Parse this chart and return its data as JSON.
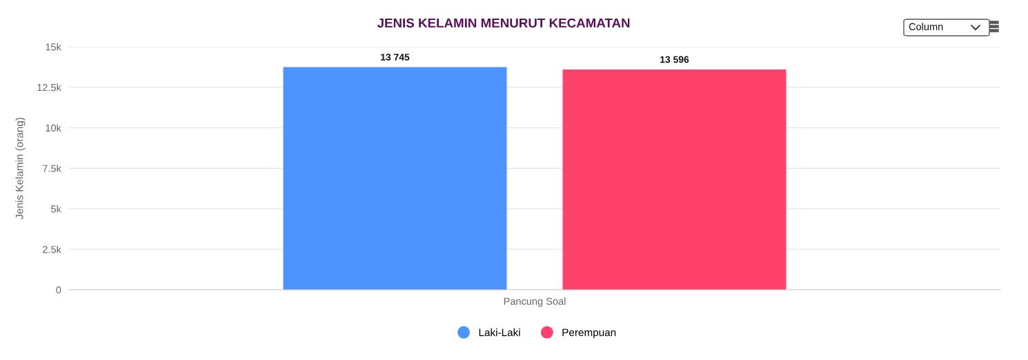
{
  "chart_data": {
    "type": "bar",
    "title": "JENIS KELAMIN MENURUT KECAMATAN",
    "ylabel": "Jenis Kelamin (orang)",
    "categories": [
      "Pancung Soal"
    ],
    "series": [
      {
        "name": "Laki-Laki",
        "color": "#4d94ff",
        "values": [
          13745
        ],
        "value_labels": [
          "13 745"
        ]
      },
      {
        "name": "Perempuan",
        "color": "#ff426b",
        "values": [
          13596
        ],
        "value_labels": [
          "13 596"
        ]
      }
    ],
    "ylim": [
      0,
      15000
    ],
    "yticks": [
      0,
      {
        "value": 2500,
        "label": "2.5k"
      },
      {
        "value": 5000,
        "label": "5k"
      },
      {
        "value": 7500,
        "label": "7.5k"
      },
      {
        "value": 10000,
        "label": "10k"
      },
      {
        "value": 12500,
        "label": "12.5k"
      },
      {
        "value": 15000,
        "label": "15k"
      }
    ],
    "grid": "y",
    "legend": "bottom",
    "marker": "circle",
    "annotations": [
      "Column"
    ]
  }
}
